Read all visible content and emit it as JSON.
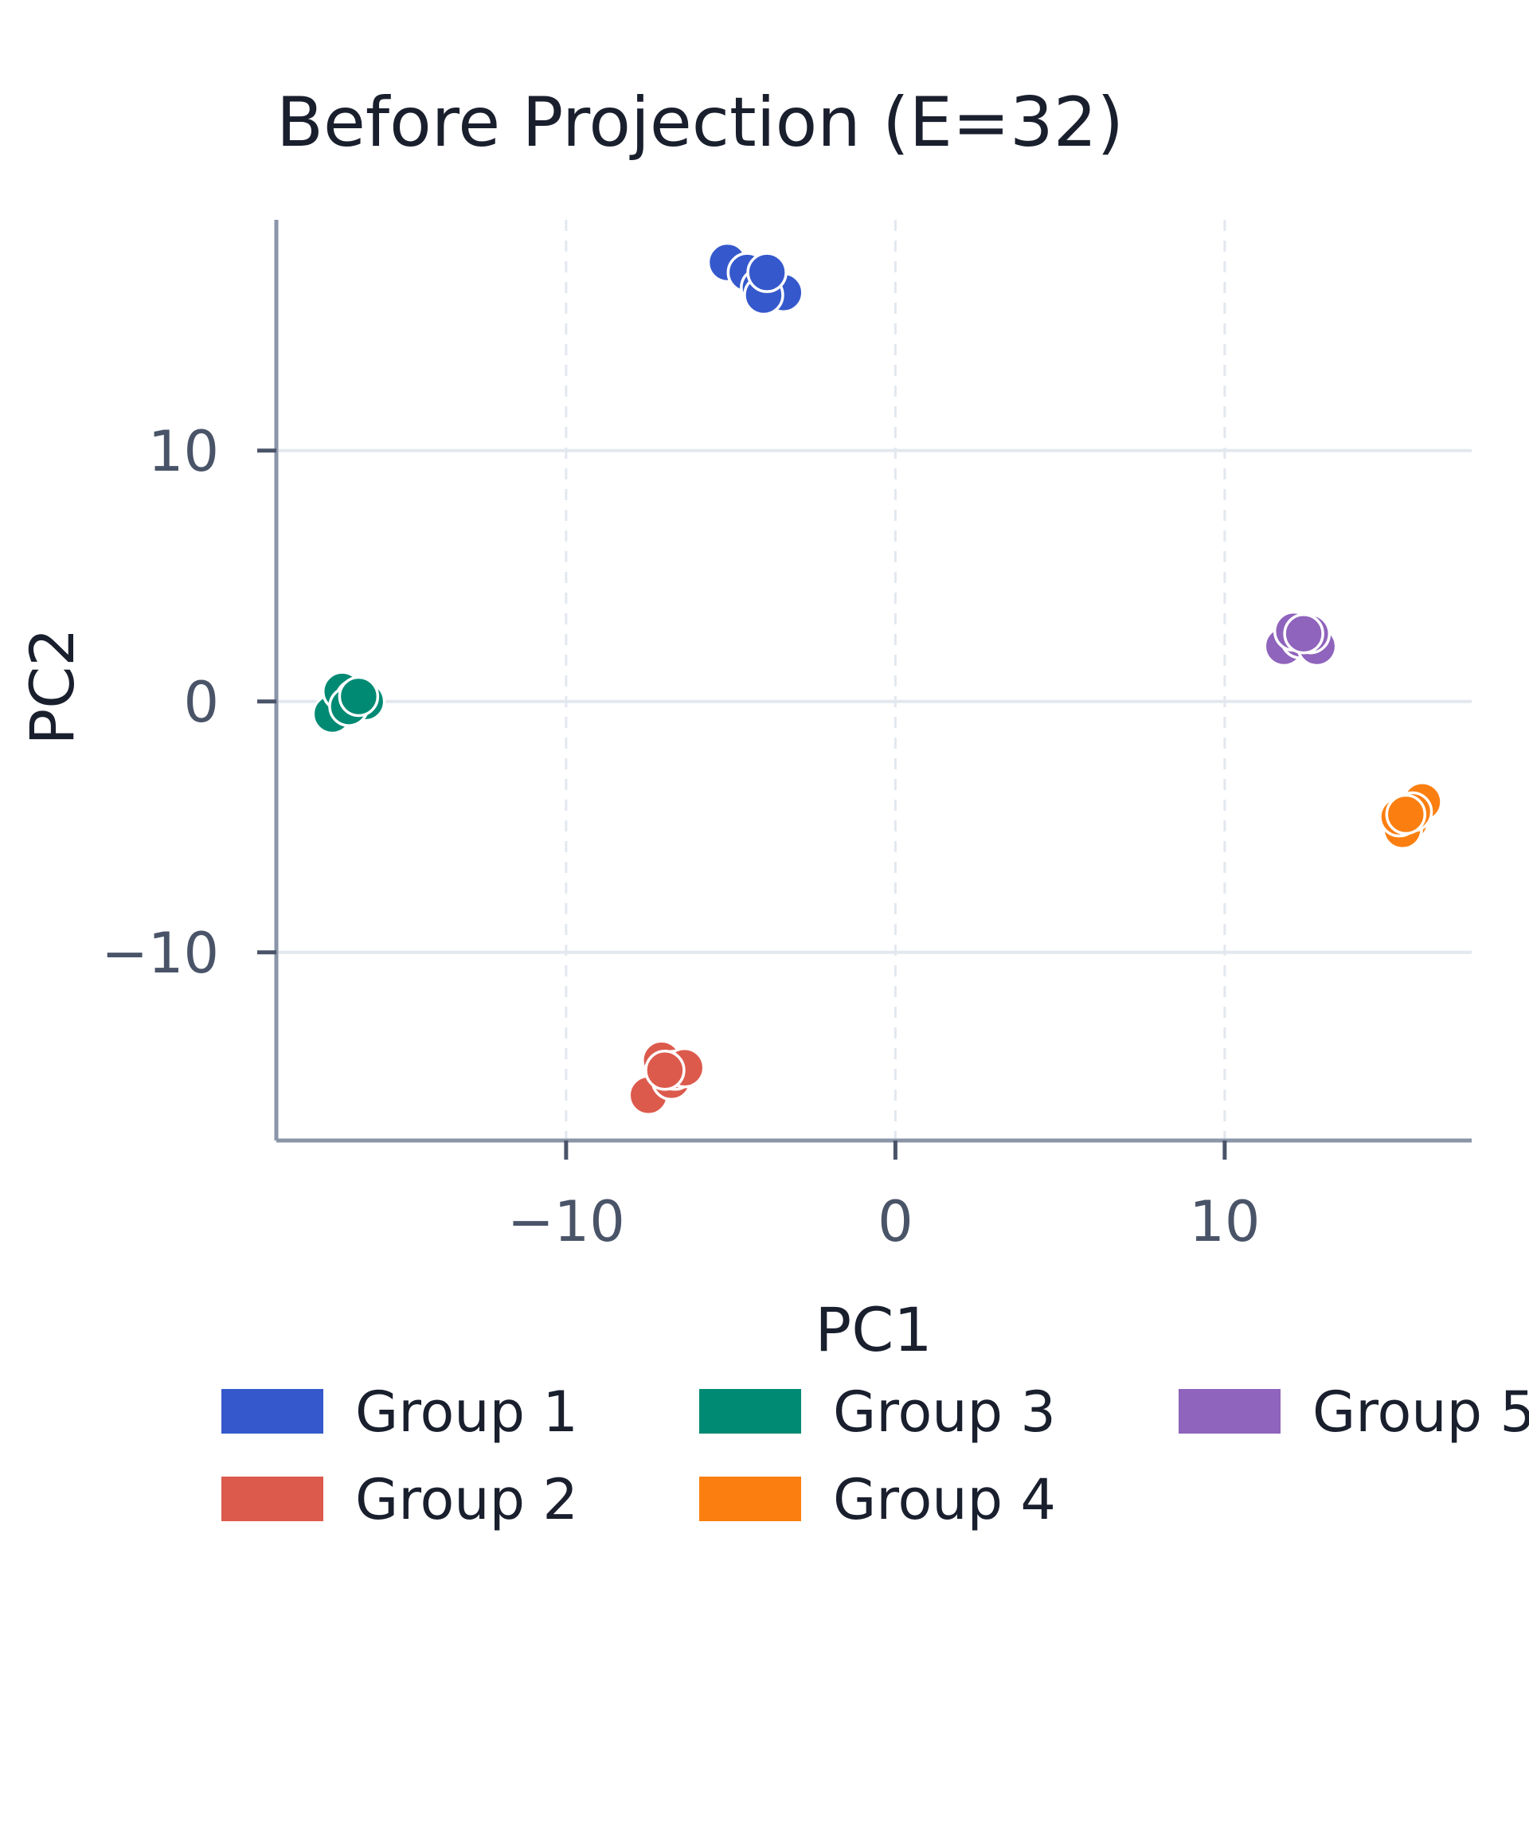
{
  "chart_data": {
    "type": "scatter",
    "title": "Before Projection (E=32)",
    "xlabel": "PC1",
    "ylabel": "PC2",
    "xlim": [
      -18.8,
      17.5
    ],
    "ylim": [
      -17.5,
      19.2
    ],
    "xticks": [
      -10,
      0,
      10
    ],
    "yticks": [
      -10,
      0,
      10
    ],
    "xtick_labels": [
      "−10",
      "0",
      "10"
    ],
    "ytick_labels": [
      "−10",
      "0",
      "10"
    ],
    "grid": true,
    "legend_position": "bottom",
    "series": [
      {
        "name": "Group 1",
        "color": "#3559CC",
        "points": [
          [
            -5.1,
            17.5
          ],
          [
            -4.5,
            17.1
          ],
          [
            -3.4,
            16.3
          ],
          [
            -4.1,
            16.5
          ],
          [
            -4.0,
            16.2
          ],
          [
            -3.9,
            17.1
          ]
        ]
      },
      {
        "name": "Group 2",
        "color": "#DC5A4C",
        "points": [
          [
            -7.5,
            -15.7
          ],
          [
            -6.8,
            -15.1
          ],
          [
            -7.1,
            -14.3
          ],
          [
            -6.7,
            -14.7
          ],
          [
            -6.4,
            -14.6
          ],
          [
            -7.0,
            -14.7
          ]
        ]
      },
      {
        "name": "Group 3",
        "color": "#008A73",
        "points": [
          [
            -17.1,
            -0.5
          ],
          [
            -16.8,
            0.4
          ],
          [
            -16.4,
            0.1
          ],
          [
            -16.1,
            0.0
          ],
          [
            -16.6,
            -0.2
          ],
          [
            -16.3,
            0.2
          ]
        ]
      },
      {
        "name": "Group 4",
        "color": "#FA7F10",
        "points": [
          [
            15.6,
            -4.8
          ],
          [
            16.0,
            -4.0
          ],
          [
            15.4,
            -5.1
          ],
          [
            15.7,
            -4.4
          ],
          [
            15.3,
            -4.6
          ],
          [
            15.5,
            -4.5
          ]
        ]
      },
      {
        "name": "Group 5",
        "color": "#8F64BC",
        "points": [
          [
            11.8,
            2.2
          ],
          [
            12.3,
            2.5
          ],
          [
            12.8,
            2.2
          ],
          [
            12.1,
            2.8
          ],
          [
            12.6,
            2.7
          ],
          [
            12.4,
            2.7
          ]
        ]
      }
    ]
  }
}
